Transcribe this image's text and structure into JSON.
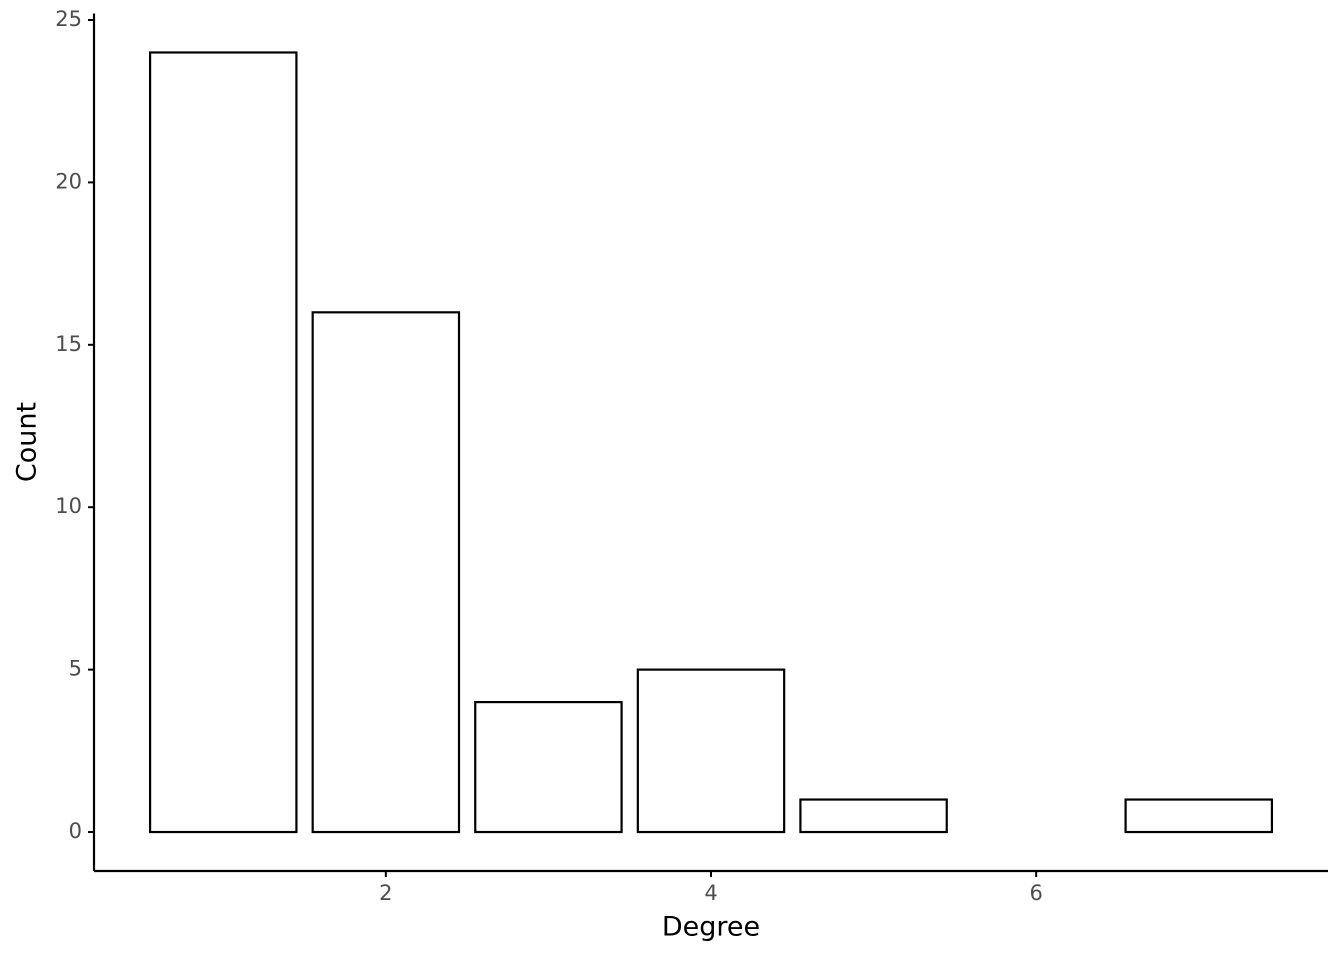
{
  "chart_data": {
    "type": "bar",
    "x": [
      1,
      2,
      3,
      4,
      5,
      7
    ],
    "values": [
      24,
      16,
      4,
      5,
      1,
      1
    ],
    "xlabel": "Degree",
    "ylabel": "Count",
    "fill": "#ffffff",
    "color": "#000000",
    "xlim": [
      0.205,
      7.795
    ],
    "xticks": [
      2,
      4,
      6
    ],
    "ylim": [
      -1.2,
      25.2
    ],
    "yticks": [
      0,
      5,
      10,
      15,
      20,
      25
    ],
    "grid": false
  }
}
